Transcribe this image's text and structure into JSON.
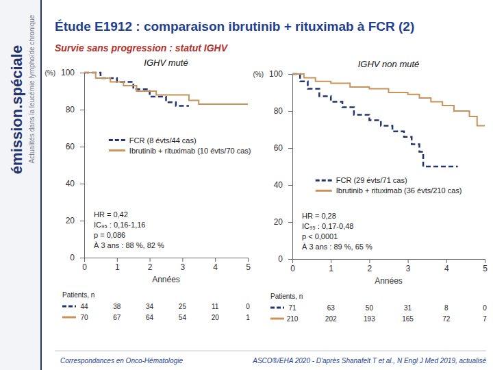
{
  "page": {
    "title": "Étude E1912 : comparaison ibrutinib + rituximab à FCR (2)",
    "subtitle": "Survie sans progression : statut IGHV",
    "brand": "émission.spéciale",
    "brand_tagline": "Actualités dans la leucémie lymphoïde chronique",
    "footer_left": "Correspondances en Onco-Hématologie",
    "footer_right": "ASCO®/EHA 2020 - D'après Shanafelt T et al., N Engl J Med 2019, actualisé"
  },
  "chart_data": [
    {
      "type": "line",
      "title": "IGHV muté",
      "xlabel": "Années",
      "ylabel": "(%)",
      "xlim": [
        0,
        5
      ],
      "xticks": [
        0,
        1,
        2,
        3,
        4,
        5
      ],
      "ylim": [
        0,
        100
      ],
      "yticks": [
        0,
        20,
        40,
        60,
        80,
        100
      ],
      "grid": false,
      "legend": "center",
      "annotations": [
        "HR = 0,42",
        "IC₉₅ : 0,16-1,16",
        "p = 0,086",
        "À 3 ans : 88 %, 82 %"
      ],
      "at_risk_label": "Patients, n",
      "at_risk_x": [
        0,
        1,
        2,
        3,
        4,
        5
      ],
      "series": [
        {
          "name": "FCR (8 évts/44 cas)",
          "color": "#22336e",
          "line_style": "dashed",
          "x": [
            0,
            0.5,
            1.0,
            1.5,
            2.0,
            2.5,
            2.8,
            3.2
          ],
          "values": [
            100,
            97,
            95,
            91,
            87,
            84,
            82,
            82
          ],
          "at_risk": [
            44,
            38,
            34,
            25,
            11,
            0
          ]
        },
        {
          "name": "Ibrutinib + rituximab (10 évts/70 cas)",
          "color": "#c8935a",
          "line_style": "solid",
          "x": [
            0,
            0.35,
            0.8,
            1.2,
            1.6,
            2.2,
            3.2,
            3.5,
            5.0
          ],
          "values": [
            100,
            97,
            95,
            93,
            90,
            88,
            85,
            83,
            83
          ],
          "at_risk": [
            70,
            67,
            64,
            54,
            20,
            1
          ]
        }
      ]
    },
    {
      "type": "line",
      "title": "IGHV non muté",
      "xlabel": "Années",
      "ylabel": "(%)",
      "xlim": [
        0,
        5
      ],
      "xticks": [
        0,
        1,
        2,
        3,
        4,
        5
      ],
      "ylim": [
        0,
        100
      ],
      "yticks": [
        0,
        20,
        40,
        60,
        80,
        100
      ],
      "grid": false,
      "legend": "lower right",
      "annotations": [
        "HR = 0,28",
        "IC₉₅ : 0,17-0,48",
        "p < 0,0001",
        "À 3 ans : 89 %, 65 %"
      ],
      "at_risk_label": "Patients, n",
      "at_risk_x": [
        0,
        1,
        2,
        3,
        4,
        5
      ],
      "series": [
        {
          "name": "FCR (29 évts/71 cas)",
          "color": "#22336e",
          "line_style": "dashed",
          "x": [
            0,
            0.2,
            0.4,
            0.7,
            1.0,
            1.3,
            1.6,
            2.0,
            2.3,
            2.6,
            2.9,
            3.1,
            3.3,
            3.4,
            4.3
          ],
          "values": [
            100,
            96,
            92,
            88,
            85,
            82,
            78,
            75,
            72,
            69,
            66,
            62,
            58,
            50,
            50
          ],
          "at_risk": [
            71,
            63,
            50,
            31,
            8,
            0
          ]
        },
        {
          "name": "Ibrutinib + rituximab (36 évts/210 cas)",
          "color": "#c8935a",
          "line_style": "solid",
          "x": [
            0,
            0.3,
            0.6,
            1.0,
            1.5,
            2.0,
            2.5,
            3.0,
            3.3,
            3.6,
            3.9,
            4.2,
            4.6,
            4.8,
            5.0
          ],
          "values": [
            100,
            98,
            96,
            95,
            93,
            92,
            90,
            89,
            87,
            85,
            83,
            80,
            77,
            72,
            72
          ],
          "at_risk": [
            210,
            202,
            193,
            165,
            72,
            7
          ]
        }
      ]
    }
  ]
}
